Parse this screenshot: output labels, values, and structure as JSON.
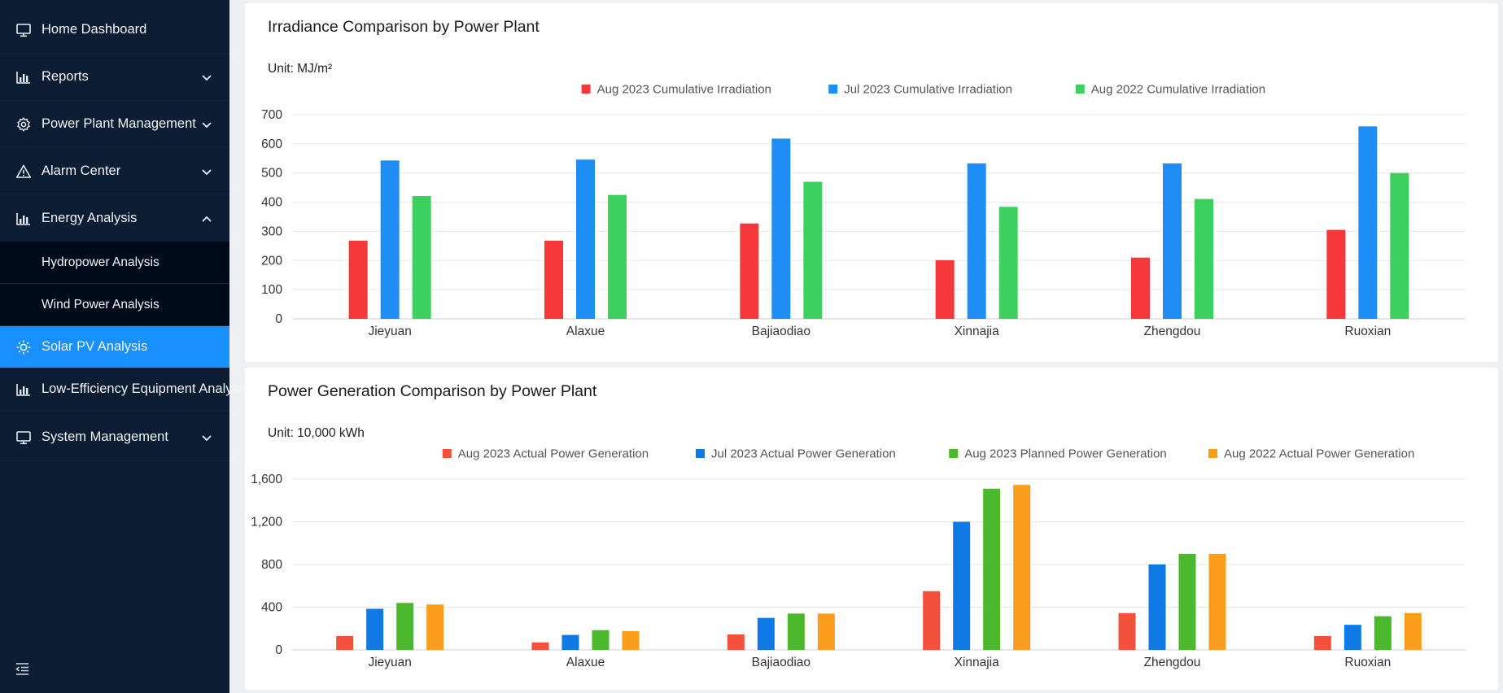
{
  "sidebar": {
    "items": [
      {
        "label": "Home Dashboard",
        "icon": "monitor-icon",
        "chevron": "none"
      },
      {
        "label": "Reports",
        "icon": "bar-chart-icon",
        "chevron": "down"
      },
      {
        "label": "Power Plant Management",
        "icon": "gear-icon",
        "chevron": "down"
      },
      {
        "label": "Alarm Center",
        "icon": "warning-icon",
        "chevron": "down"
      },
      {
        "label": "Energy Analysis",
        "icon": "bar-chart-icon",
        "chevron": "up"
      },
      {
        "label": "Hydropower Analysis",
        "icon": "",
        "chevron": "none",
        "sub": true
      },
      {
        "label": "Wind Power Analysis",
        "icon": "",
        "chevron": "none",
        "sub": true
      },
      {
        "label": "Solar PV Analysis",
        "icon": "sun-icon",
        "chevron": "none",
        "active": true
      },
      {
        "label": "Low-Efficiency Equipment Analysis",
        "icon": "bar-chart-icon",
        "chevron": "none"
      },
      {
        "label": "System Management",
        "icon": "monitor-icon",
        "chevron": "down"
      }
    ],
    "collapse_icon": "menu-fold-icon"
  },
  "irradiance": {
    "title": "Irradiance Comparison by Power Plant",
    "unit": "Unit: MJ/m²"
  },
  "generation": {
    "title": "Power Generation Comparison by Power Plant",
    "unit": "Unit: 10,000 kWh"
  },
  "chart_data": [
    {
      "type": "bar",
      "title": "Irradiance Comparison by Power Plant",
      "ylabel": "Unit: MJ/m²",
      "categories": [
        "Jieyuan",
        "Alaxue",
        "Bajiaodiao",
        "Xinnajia",
        "Zhengdou",
        "Ruoxian"
      ],
      "ylim": [
        0,
        700
      ],
      "yticks": [
        0,
        100,
        200,
        300,
        400,
        500,
        600,
        700
      ],
      "ytick_labels": [
        "0",
        "100",
        "200",
        "300",
        "400",
        "500",
        "600",
        "700"
      ],
      "grid": true,
      "legend": "top-center",
      "series": [
        {
          "name": "Aug 2023 Cumulative Irradiation",
          "color": "#f5393a",
          "values": [
            268,
            268,
            327,
            201,
            210,
            305
          ]
        },
        {
          "name": "Jul 2023 Cumulative Irradiation",
          "color": "#1e8ef5",
          "values": [
            543,
            546,
            618,
            533,
            533,
            660
          ]
        },
        {
          "name": "Aug 2022 Cumulative Irradiation",
          "color": "#3dd05e",
          "values": [
            421,
            425,
            470,
            384,
            411,
            500
          ]
        }
      ]
    },
    {
      "type": "bar",
      "title": "Power Generation Comparison by Power Plant",
      "ylabel": "Unit: 10,000 kWh",
      "categories": [
        "Jieyuan",
        "Alaxue",
        "Bajiaodiao",
        "Xinnajia",
        "Zhengdou",
        "Ruoxian"
      ],
      "ylim": [
        0,
        1600
      ],
      "yticks": [
        0,
        400,
        800,
        1200,
        1600
      ],
      "ytick_labels": [
        "0",
        "400",
        "800",
        "1,200",
        "1,600"
      ],
      "grid": true,
      "legend": "top-center",
      "series": [
        {
          "name": "Aug 2023 Actual Power Generation",
          "color": "#f4513c",
          "values": [
            130,
            70,
            145,
            550,
            345,
            130
          ]
        },
        {
          "name": "Jul 2023 Actual Power Generation",
          "color": "#0f7ae6",
          "values": [
            385,
            140,
            300,
            1200,
            800,
            235
          ]
        },
        {
          "name": "Aug 2023 Planned Power Generation",
          "color": "#4cb82e",
          "values": [
            440,
            185,
            340,
            1510,
            900,
            315
          ]
        },
        {
          "name": "Aug 2022 Actual Power Generation",
          "color": "#fa9e1b",
          "values": [
            425,
            175,
            340,
            1545,
            900,
            345
          ]
        }
      ]
    }
  ]
}
